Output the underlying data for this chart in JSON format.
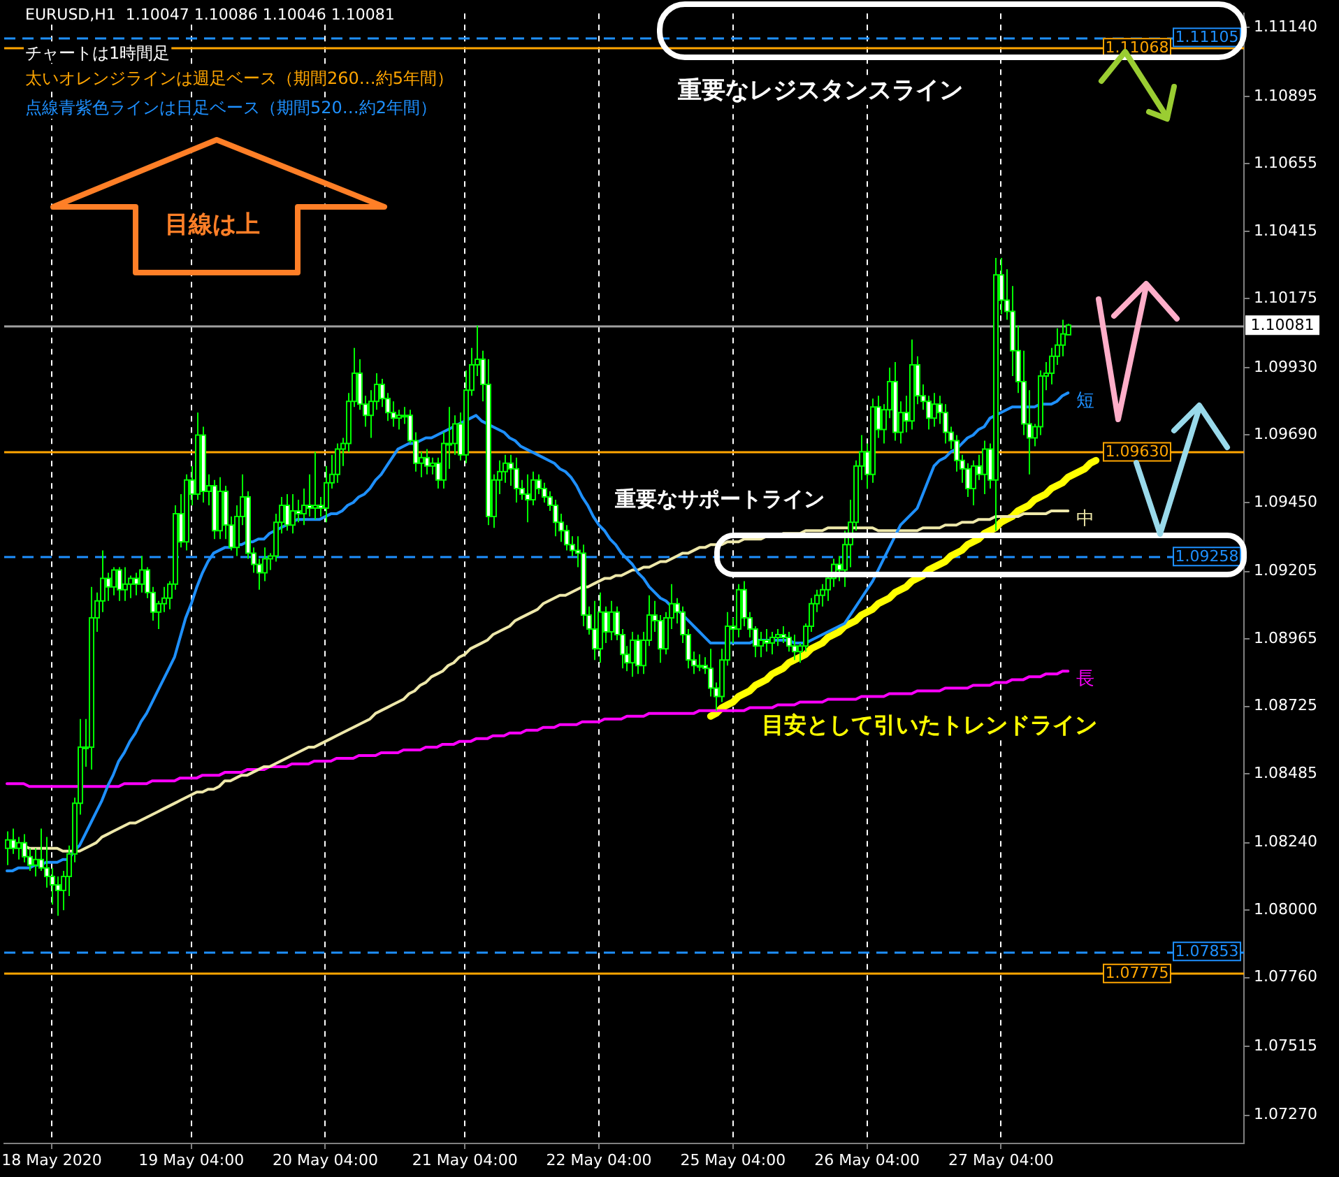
{
  "chart_data": {
    "type": "candlestick",
    "title": "EURUSD,H1  1.10047 1.10086 1.10046 1.10081",
    "annotations": [
      "チャートは1時間足",
      "太いオレンジラインは週足ベース（期間260…約5年間）",
      "点線青紫色ラインは日足ベース（期間520…約2年間）",
      "重要なレジスタンスライン",
      "目線は上",
      "重要なサポートライン",
      "目安として引いたトレンドライン"
    ],
    "categories": [
      null,
      null,
      null,
      null,
      null,
      null,
      null,
      null,
      "18 May 2020",
      null,
      null,
      null,
      null,
      null,
      null,
      null,
      null,
      null,
      null,
      null,
      null,
      null,
      null,
      null,
      null,
      null,
      null,
      null,
      null,
      null,
      null,
      null,
      null,
      "19 May 04:00",
      null,
      null,
      null,
      null,
      null,
      null,
      null,
      null,
      null,
      null,
      null,
      null,
      null,
      null,
      null,
      null,
      null,
      null,
      null,
      null,
      null,
      null,
      null,
      "20 May 04:00",
      null,
      null,
      null,
      null,
      null,
      null,
      null,
      null,
      null,
      null,
      null,
      null,
      null,
      null,
      null,
      null,
      null,
      null,
      null,
      null,
      null,
      null,
      null,
      null,
      "21 May 04:00",
      null,
      null,
      null,
      null,
      null,
      null,
      null,
      null,
      null,
      null,
      null,
      null,
      null,
      null,
      null,
      null,
      null,
      null,
      null,
      null,
      null,
      null,
      null,
      "22 May 04:00",
      null,
      null,
      null,
      null,
      null,
      null,
      null,
      null,
      null,
      null,
      null,
      null,
      null,
      null,
      null,
      null,
      null,
      null,
      null,
      null,
      null,
      null,
      null,
      "25 May 04:00",
      null,
      null,
      null,
      null,
      null,
      null,
      null,
      null,
      null,
      null,
      null,
      null,
      null,
      null,
      null,
      null,
      null,
      null,
      null,
      null,
      null,
      null,
      null,
      "26 May 04:00",
      null,
      null,
      null,
      null,
      null,
      null,
      null,
      null,
      null,
      null,
      null,
      null,
      null,
      null,
      null,
      null,
      null,
      null,
      null,
      null,
      null,
      null,
      null,
      "27 May 04:00",
      null,
      null,
      null,
      null,
      null,
      null,
      null,
      null,
      null,
      null,
      null,
      null,
      null,
      null,
      null,
      null,
      null,
      null,
      null,
      null,
      null,
      null,
      null,
      null,
      null,
      null,
      null,
      null,
      null,
      null,
      null,
      null,
      null,
      null,
      null,
      null,
      null,
      null,
      null,
      null,
      null,
      null,
      null
    ],
    "ohlc": [
      [
        1.0822,
        1.0828,
        1.0816,
        1.0825
      ],
      [
        1.0825,
        1.0829,
        1.082,
        1.0822
      ],
      [
        1.0822,
        1.0826,
        1.0818,
        1.0824
      ],
      [
        1.0824,
        1.0827,
        1.0817,
        1.0819
      ],
      [
        1.0819,
        1.0822,
        1.0814,
        1.0816
      ],
      [
        1.0816,
        1.0822,
        1.0812,
        1.0818
      ],
      [
        1.0818,
        1.0829,
        1.0814,
        1.0815
      ],
      [
        1.0815,
        1.0826,
        1.0808,
        1.0812
      ],
      [
        1.0812,
        1.0815,
        1.0802,
        1.0809
      ],
      [
        1.0809,
        1.0812,
        1.0798,
        1.0807
      ],
      [
        1.0807,
        1.0814,
        1.08,
        1.0812
      ],
      [
        1.0812,
        1.0823,
        1.0805,
        1.082
      ],
      [
        1.082,
        1.084,
        1.0817,
        1.0838
      ],
      [
        1.0838,
        1.0868,
        1.0834,
        1.0858
      ],
      [
        1.0858,
        1.0868,
        1.0851,
        1.0858
      ],
      [
        1.0858,
        1.0915,
        1.085,
        1.0904
      ],
      [
        1.0904,
        1.0913,
        1.0899,
        1.091
      ],
      [
        1.091,
        1.0928,
        1.0906,
        1.0918
      ],
      [
        1.0918,
        1.092,
        1.091,
        1.0915
      ],
      [
        1.0915,
        1.0922,
        1.0912,
        1.0921
      ],
      [
        1.0921,
        1.0922,
        1.091,
        1.0914
      ],
      [
        1.0914,
        1.0922,
        1.091,
        1.0916
      ],
      [
        1.0916,
        1.0919,
        1.0911,
        1.0918
      ],
      [
        1.0918,
        1.092,
        1.0912,
        1.0916
      ],
      [
        1.0916,
        1.0926,
        1.0913,
        1.0921
      ],
      [
        1.0921,
        1.0922,
        1.0911,
        1.0913
      ],
      [
        1.0913,
        1.0915,
        1.0903,
        1.0906
      ],
      [
        1.0906,
        1.091,
        1.09,
        1.0909
      ],
      [
        1.0909,
        1.0915,
        1.0906,
        1.0911
      ],
      [
        1.0911,
        1.0917,
        1.0907,
        1.0916
      ],
      [
        1.0916,
        1.0944,
        1.0914,
        1.0941
      ],
      [
        1.0941,
        1.0948,
        1.0929,
        1.0931
      ],
      [
        1.0931,
        1.0955,
        1.0928,
        1.0953
      ],
      [
        1.0953,
        1.0958,
        1.0944,
        1.0948
      ],
      [
        1.0948,
        1.0977,
        1.0946,
        1.0969
      ],
      [
        1.0969,
        1.0972,
        1.0945,
        1.0949
      ],
      [
        1.0949,
        1.0955,
        1.0944,
        1.0951
      ],
      [
        1.0951,
        1.0953,
        1.0932,
        1.0935
      ],
      [
        1.0935,
        1.0954,
        1.0932,
        1.0949
      ],
      [
        1.0949,
        1.0951,
        1.0932,
        1.0937
      ],
      [
        1.0937,
        1.094,
        1.0928,
        1.0929
      ],
      [
        1.0929,
        1.0944,
        1.0926,
        1.094
      ],
      [
        1.094,
        1.0955,
        1.0937,
        1.0947
      ],
      [
        1.0947,
        1.0949,
        1.0925,
        1.0927
      ],
      [
        1.0927,
        1.0929,
        1.092,
        1.0923
      ],
      [
        1.0923,
        1.0925,
        1.0914,
        1.092
      ],
      [
        1.092,
        1.0929,
        1.0917,
        1.0925
      ],
      [
        1.0925,
        1.0927,
        1.0921,
        1.0926
      ],
      [
        1.0926,
        1.0941,
        1.0924,
        1.0938
      ],
      [
        1.0938,
        1.0947,
        1.0934,
        1.0944
      ],
      [
        1.0944,
        1.0948,
        1.0935,
        1.0937
      ],
      [
        1.0937,
        1.0948,
        1.0934,
        1.0942
      ],
      [
        1.0942,
        1.0946,
        1.0938,
        1.0941
      ],
      [
        1.0941,
        1.095,
        1.0937,
        1.0944
      ],
      [
        1.0944,
        1.0955,
        1.094,
        1.0943
      ],
      [
        1.0943,
        1.0963,
        1.0939,
        1.0944
      ],
      [
        1.0944,
        1.0947,
        1.094,
        1.0943
      ],
      [
        1.0943,
        1.0958,
        1.0938,
        1.0952
      ],
      [
        1.0952,
        1.0962,
        1.095,
        1.0955
      ],
      [
        1.0955,
        1.0966,
        1.0952,
        1.0964
      ],
      [
        1.0964,
        1.0968,
        1.0958,
        1.0966
      ],
      [
        1.0966,
        1.0984,
        1.0963,
        1.0981
      ],
      [
        1.0981,
        1.1,
        1.0979,
        1.0991
      ],
      [
        1.0991,
        1.0996,
        1.0978,
        1.098
      ],
      [
        1.098,
        1.0983,
        1.0972,
        1.0976
      ],
      [
        1.0976,
        1.0985,
        1.0968,
        1.0981
      ],
      [
        1.0981,
        1.0991,
        1.0978,
        1.0987
      ],
      [
        1.0987,
        1.0989,
        1.0979,
        1.0982
      ],
      [
        1.0982,
        1.0984,
        1.0974,
        1.0977
      ],
      [
        1.0977,
        1.0981,
        1.0972,
        1.0975
      ],
      [
        1.0975,
        1.0978,
        1.0971,
        1.0976
      ],
      [
        1.0976,
        1.0979,
        1.0973,
        1.0976
      ],
      [
        1.0976,
        1.0978,
        1.0966,
        1.0967
      ],
      [
        1.0967,
        1.097,
        1.0956,
        1.0959
      ],
      [
        1.0959,
        1.0963,
        1.0954,
        1.0961
      ],
      [
        1.0961,
        1.0964,
        1.0955,
        1.0958
      ],
      [
        1.0958,
        1.0961,
        1.0955,
        1.0959
      ],
      [
        1.0959,
        1.0961,
        1.095,
        1.0953
      ],
      [
        1.0953,
        1.097,
        1.095,
        1.0966
      ],
      [
        1.0966,
        1.0979,
        1.0957,
        1.0966
      ],
      [
        1.0966,
        1.0976,
        1.0962,
        1.0973
      ],
      [
        1.0973,
        1.0977,
        1.096,
        1.0962
      ],
      [
        1.0962,
        1.0992,
        1.0959,
        1.0985
      ],
      [
        1.0985,
        1.1,
        1.0983,
        1.0994
      ],
      [
        1.0994,
        1.1008,
        1.099,
        1.0996
      ],
      [
        1.0996,
        1.0999,
        1.0981,
        1.0987
      ],
      [
        1.0987,
        1.0996,
        1.0937,
        1.094
      ],
      [
        1.094,
        1.0955,
        1.0936,
        1.0953
      ],
      [
        1.0953,
        1.096,
        1.0948,
        1.0956
      ],
      [
        1.0956,
        1.0962,
        1.0952,
        1.0959
      ],
      [
        1.0959,
        1.0962,
        1.0951,
        1.0957
      ],
      [
        1.0957,
        1.0961,
        1.0945,
        1.095
      ],
      [
        1.095,
        1.0953,
        1.0946,
        1.0948
      ],
      [
        1.0948,
        1.0955,
        1.0938,
        1.0946
      ],
      [
        1.0946,
        1.0956,
        1.0944,
        1.0953
      ],
      [
        1.0953,
        1.0955,
        1.0948,
        1.095
      ],
      [
        1.095,
        1.0952,
        1.0945,
        1.0947
      ],
      [
        1.0947,
        1.0949,
        1.0942,
        1.0944
      ],
      [
        1.0944,
        1.0946,
        1.0933,
        1.0938
      ],
      [
        1.0938,
        1.0941,
        1.0931,
        1.0935
      ],
      [
        1.0935,
        1.0937,
        1.0928,
        1.093
      ],
      [
        1.093,
        1.0933,
        1.0926,
        1.0928
      ],
      [
        1.0928,
        1.0933,
        1.0922,
        1.0927
      ],
      [
        1.0927,
        1.093,
        1.0901,
        1.0905
      ],
      [
        1.0905,
        1.0908,
        1.0898,
        1.09
      ],
      [
        1.09,
        1.091,
        1.0889,
        1.0893
      ],
      [
        1.0893,
        1.0913,
        1.0888,
        1.0906
      ],
      [
        1.0906,
        1.0908,
        1.0895,
        1.0899
      ],
      [
        1.0899,
        1.091,
        1.0896,
        1.0906
      ],
      [
        1.0906,
        1.0908,
        1.0896,
        1.0898
      ],
      [
        1.0898,
        1.09,
        1.0886,
        1.0891
      ],
      [
        1.0891,
        1.0894,
        1.0885,
        1.0888
      ],
      [
        1.0888,
        1.0899,
        1.0883,
        1.0896
      ],
      [
        1.0896,
        1.0898,
        1.0884,
        1.0887
      ],
      [
        1.0887,
        1.0899,
        1.0884,
        1.0896
      ],
      [
        1.0896,
        1.0912,
        1.0894,
        1.0905
      ],
      [
        1.0905,
        1.091,
        1.0899,
        1.0903
      ],
      [
        1.0903,
        1.0905,
        1.0888,
        1.0893
      ],
      [
        1.0893,
        1.0906,
        1.0891,
        1.0904
      ],
      [
        1.0904,
        1.0916,
        1.09,
        1.0909
      ],
      [
        1.0909,
        1.0911,
        1.0902,
        1.0906
      ],
      [
        1.0906,
        1.0908,
        1.0895,
        1.0898
      ],
      [
        1.0898,
        1.09,
        1.0886,
        1.0889
      ],
      [
        1.0889,
        1.0892,
        1.0884,
        1.0887
      ],
      [
        1.0887,
        1.0891,
        1.0885,
        1.0887
      ],
      [
        1.0887,
        1.089,
        1.0884,
        1.0886
      ],
      [
        1.0886,
        1.0893,
        1.0876,
        1.0879
      ],
      [
        1.0879,
        1.0881,
        1.0871,
        1.0876
      ],
      [
        1.0876,
        1.0893,
        1.0874,
        1.0889
      ],
      [
        1.0889,
        1.0906,
        1.0887,
        1.0901
      ],
      [
        1.0901,
        1.0904,
        1.0895,
        1.09
      ],
      [
        1.09,
        1.0916,
        1.0897,
        1.0914
      ],
      [
        1.0914,
        1.0917,
        1.0901,
        1.0904
      ],
      [
        1.0904,
        1.0906,
        1.0897,
        1.09
      ],
      [
        1.09,
        1.0901,
        1.089,
        1.0894
      ],
      [
        1.0894,
        1.0899,
        1.089,
        1.0896
      ],
      [
        1.0896,
        1.09,
        1.0892,
        1.0895
      ],
      [
        1.0895,
        1.0899,
        1.0891,
        1.0897
      ],
      [
        1.0897,
        1.09,
        1.0894,
        1.0898
      ],
      [
        1.0898,
        1.0901,
        1.0895,
        1.0897
      ],
      [
        1.0897,
        1.0899,
        1.0892,
        1.0894
      ],
      [
        1.0894,
        1.0898,
        1.0889,
        1.0892
      ],
      [
        1.0892,
        1.0895,
        1.0888,
        1.0894
      ],
      [
        1.0894,
        1.0902,
        1.0892,
        1.0901
      ],
      [
        1.0901,
        1.0911,
        1.0899,
        1.0909
      ],
      [
        1.0909,
        1.0914,
        1.0906,
        1.0912
      ],
      [
        1.0912,
        1.0916,
        1.0908,
        1.0914
      ],
      [
        1.0914,
        1.092,
        1.091,
        1.0918
      ],
      [
        1.0918,
        1.0925,
        1.0915,
        1.0923
      ],
      [
        1.0923,
        1.0926,
        1.0917,
        1.0921
      ],
      [
        1.0921,
        1.0935,
        1.0915,
        1.093
      ],
      [
        1.093,
        1.0946,
        1.0922,
        1.0938
      ],
      [
        1.0938,
        1.096,
        1.0935,
        1.0958
      ],
      [
        1.0958,
        1.0969,
        1.0953,
        1.0963
      ],
      [
        1.0963,
        1.0966,
        1.095,
        1.0955
      ],
      [
        1.0955,
        1.0982,
        1.0952,
        1.0979
      ],
      [
        1.0979,
        1.0983,
        1.0968,
        1.0971
      ],
      [
        1.0971,
        1.098,
        1.0966,
        1.0978
      ],
      [
        1.0978,
        1.0993,
        1.0975,
        1.0988
      ],
      [
        1.0988,
        1.0995,
        1.0967,
        1.097
      ],
      [
        1.097,
        1.0981,
        1.0966,
        1.0977
      ],
      [
        1.0977,
        1.0983,
        1.097,
        1.0974
      ],
      [
        1.0974,
        1.1003,
        1.0971,
        1.0994
      ],
      [
        1.0994,
        1.0997,
        1.098,
        1.0983
      ],
      [
        1.0983,
        1.0987,
        1.0978,
        1.0981
      ],
      [
        1.0981,
        1.0983,
        1.0971,
        1.0975
      ],
      [
        1.0975,
        1.0984,
        1.0972,
        1.098
      ],
      [
        1.098,
        1.0983,
        1.0973,
        1.0977
      ],
      [
        1.0977,
        1.098,
        1.0966,
        1.097
      ],
      [
        1.097,
        1.0972,
        1.0964,
        1.0967
      ],
      [
        1.0967,
        1.0969,
        1.0956,
        1.096
      ],
      [
        1.096,
        1.0962,
        1.0952,
        1.0957
      ],
      [
        1.0957,
        1.0959,
        1.0947,
        1.095
      ],
      [
        1.095,
        1.096,
        1.0944,
        1.0958
      ],
      [
        1.0958,
        1.0962,
        1.0953,
        1.0955
      ],
      [
        1.0955,
        1.0967,
        1.0948,
        1.0964
      ],
      [
        1.0964,
        1.0966,
        1.095,
        1.0953
      ],
      [
        1.0953,
        1.1032,
        1.0935,
        1.1026
      ],
      [
        1.1026,
        1.1032,
        1.1012,
        1.1017
      ],
      [
        1.1017,
        1.1028,
        1.101,
        1.1013
      ],
      [
        1.1013,
        1.1022,
        1.099,
        1.0999
      ],
      [
        1.0999,
        1.1008,
        1.0984,
        1.0988
      ],
      [
        1.0988,
        1.0999,
        1.0969,
        1.0973
      ],
      [
        1.0973,
        1.0985,
        1.0955,
        1.0968
      ],
      [
        1.0968,
        1.0973,
        1.0965,
        1.0972
      ],
      [
        1.0972,
        1.0992,
        1.0969,
        1.099
      ],
      [
        1.099,
        1.0995,
        1.0985,
        1.0991
      ],
      [
        1.0991,
        1.1,
        1.0987,
        1.0997
      ],
      [
        1.0997,
        1.1007,
        1.0994,
        1.1001
      ],
      [
        1.1001,
        1.101,
        1.0997,
        1.1005
      ],
      [
        1.10047,
        1.10086,
        1.10046,
        1.10081
      ],
      null,
      null,
      null,
      null,
      null,
      null,
      null,
      null,
      null,
      null,
      null,
      null,
      null,
      null,
      null,
      null,
      null,
      null,
      null,
      null,
      null,
      null,
      null,
      null,
      null,
      null,
      null,
      null,
      null,
      null,
      null
    ],
    "series": [
      {
        "type": "line",
        "name": "短",
        "color": "#1e90ff",
        "values": [
          1.0814,
          1.0814,
          1.0815,
          1.0815,
          1.0815,
          1.0816,
          1.0816,
          1.0817,
          1.0817,
          1.0817,
          1.0818,
          1.0818,
          1.0821,
          1.0823,
          1.0827,
          1.0831,
          1.0835,
          1.0839,
          1.0844,
          1.0848,
          1.0853,
          1.0856,
          1.086,
          1.0863,
          1.0867,
          1.087,
          1.0874,
          1.0878,
          1.0882,
          1.0886,
          1.089,
          1.0897,
          1.0904,
          1.0909,
          1.0915,
          1.092,
          1.0924,
          1.0927,
          1.0928,
          1.0929,
          1.0929,
          1.093,
          1.093,
          1.0931,
          1.0931,
          1.0932,
          1.0932,
          1.0934,
          1.0935,
          1.0936,
          1.0937,
          1.0938,
          1.0939,
          1.0939,
          1.0939,
          1.0939,
          1.0939,
          1.094,
          1.0941,
          1.0941,
          1.0942,
          1.0944,
          1.0945,
          1.0947,
          1.0948,
          1.095,
          1.0953,
          1.0955,
          1.0958,
          1.0961,
          1.0964,
          1.0965,
          1.0966,
          1.0966,
          1.0967,
          1.0968,
          1.0968,
          1.0969,
          1.097,
          1.0971,
          1.0972,
          1.0973,
          1.0974,
          1.0975,
          1.0976,
          1.0974,
          1.0973,
          1.0972,
          1.0971,
          1.097,
          1.0968,
          1.0967,
          1.0965,
          1.0964,
          1.0963,
          1.0962,
          1.0961,
          1.096,
          1.0959,
          1.0957,
          1.0956,
          1.0954,
          1.0951,
          1.0947,
          1.0944,
          1.094,
          1.0937,
          1.0935,
          1.0932,
          1.093,
          1.0927,
          1.0925,
          1.0923,
          1.092,
          1.0918,
          1.0915,
          1.0913,
          1.0911,
          1.091,
          1.0908,
          1.0907,
          1.0905,
          1.0903,
          1.0901,
          1.0899,
          1.0897,
          1.0895,
          1.0895,
          1.0895,
          1.0895,
          1.0895,
          1.0895,
          1.0895,
          1.0895,
          1.0896,
          1.0896,
          1.0896,
          1.0896,
          1.0896,
          1.0896,
          1.0896,
          1.0895,
          1.0895,
          1.0895,
          1.0896,
          1.0897,
          1.0898,
          1.0899,
          1.09,
          1.0901,
          1.0902,
          1.0905,
          1.0908,
          1.0911,
          1.0914,
          1.0917,
          1.0921,
          1.0925,
          1.0929,
          1.0933,
          1.0937,
          1.0939,
          1.0941,
          1.0943,
          1.0948,
          1.0953,
          1.0958,
          1.096,
          1.0961,
          1.0963,
          1.0964,
          1.0966,
          1.0968,
          1.0969,
          1.0971,
          1.0972,
          1.0975,
          1.0976,
          1.0977,
          1.0978,
          1.0979,
          1.0979,
          1.0979,
          1.0979,
          1.0979,
          1.098,
          1.098,
          1.098,
          1.0981,
          1.0983,
          1.0984,
          null,
          null,
          null,
          null,
          null,
          null,
          null,
          null,
          null,
          null,
          null,
          null,
          null,
          null,
          null,
          null,
          null,
          null,
          null,
          null,
          null,
          null,
          null,
          null,
          null,
          null,
          null,
          null,
          null,
          null,
          null
        ]
      },
      {
        "type": "line",
        "name": "中",
        "color": "#eee8aa",
        "values": [
          null,
          null,
          1.0823,
          1.0823,
          1.0822,
          1.0822,
          1.0822,
          1.0822,
          1.0822,
          1.0822,
          1.0821,
          1.0821,
          1.0821,
          1.0821,
          1.0822,
          1.0823,
          1.0824,
          1.0826,
          1.0827,
          1.0828,
          1.0829,
          1.083,
          1.0831,
          1.0831,
          1.0832,
          1.0833,
          1.0834,
          1.0835,
          1.0836,
          1.0837,
          1.0838,
          1.0839,
          1.084,
          1.0841,
          1.0842,
          1.0842,
          1.0843,
          1.0843,
          1.0844,
          1.0846,
          1.0846,
          1.0847,
          1.0848,
          1.0848,
          1.0849,
          1.085,
          1.0851,
          1.0851,
          1.0852,
          1.0853,
          1.0854,
          1.0855,
          1.0856,
          1.0857,
          1.0858,
          1.0858,
          1.0859,
          1.086,
          1.0861,
          1.0862,
          1.0863,
          1.0864,
          1.0865,
          1.0866,
          1.0867,
          1.0868,
          1.087,
          1.0871,
          1.0872,
          1.0873,
          1.0874,
          1.0875,
          1.0877,
          1.0878,
          1.088,
          1.0881,
          1.0883,
          1.0884,
          1.0885,
          1.0887,
          1.0888,
          1.089,
          1.0891,
          1.0893,
          1.0894,
          1.0895,
          1.0896,
          1.0898,
          1.0899,
          1.09,
          1.0901,
          1.0903,
          1.0904,
          1.0905,
          1.0906,
          1.0907,
          1.0909,
          1.091,
          1.0911,
          1.0912,
          1.0912,
          1.0913,
          1.0914,
          1.0915,
          1.0915,
          1.0916,
          1.0917,
          1.0918,
          1.0918,
          1.0919,
          1.0919,
          1.092,
          1.0921,
          1.0921,
          1.0922,
          1.0922,
          1.0923,
          1.0924,
          1.0924,
          1.0925,
          1.0926,
          1.0927,
          1.0927,
          1.0928,
          1.0929,
          1.0929,
          1.093,
          1.093,
          1.093,
          1.0931,
          1.0931,
          1.0931,
          1.0932,
          1.0932,
          1.0932,
          1.0932,
          1.0933,
          1.0933,
          1.0933,
          1.0934,
          1.0934,
          1.0934,
          1.0934,
          1.0935,
          1.0935,
          1.0935,
          1.0935,
          1.0936,
          1.0936,
          1.0936,
          1.0936,
          1.0936,
          1.0936,
          1.0936,
          1.0936,
          1.0936,
          1.0935,
          1.0935,
          1.0935,
          1.0935,
          1.0935,
          1.0935,
          1.0935,
          1.0935,
          1.0936,
          1.0936,
          1.0936,
          1.0936,
          1.0937,
          1.0937,
          1.0937,
          1.0938,
          1.0938,
          1.0938,
          1.0939,
          1.0939,
          1.0939,
          1.094,
          1.094,
          1.094,
          1.094,
          1.094,
          1.0941,
          1.0941,
          1.0941,
          1.0941,
          1.0941,
          1.0942,
          1.0942,
          1.0942,
          1.0942,
          null,
          null,
          null,
          null,
          null,
          null,
          null,
          null,
          null,
          null,
          null,
          null,
          null,
          null,
          null,
          null,
          null,
          null,
          null,
          null,
          null,
          null,
          null,
          null,
          null,
          null,
          null,
          null,
          null,
          null,
          null
        ]
      },
      {
        "type": "line",
        "name": "長",
        "color": "#ff00ff",
        "values": [
          1.0845,
          1.0845,
          1.0845,
          1.0845,
          1.0844,
          1.0844,
          1.0844,
          1.0844,
          1.0844,
          1.0844,
          1.0844,
          1.0844,
          1.0844,
          1.0844,
          1.0844,
          1.0844,
          1.0844,
          1.0844,
          1.0844,
          1.0844,
          1.0844,
          1.0845,
          1.0845,
          1.0845,
          1.0845,
          1.0845,
          1.0846,
          1.0846,
          1.0846,
          1.0846,
          1.0846,
          1.0847,
          1.0847,
          1.0847,
          1.0847,
          1.0848,
          1.0848,
          1.0848,
          1.0848,
          1.0849,
          1.0849,
          1.0849,
          1.0849,
          1.085,
          1.085,
          1.085,
          1.085,
          1.0851,
          1.0851,
          1.0851,
          1.0851,
          1.0852,
          1.0852,
          1.0852,
          1.0852,
          1.0853,
          1.0853,
          1.0853,
          1.0853,
          1.0854,
          1.0854,
          1.0854,
          1.0854,
          1.0855,
          1.0855,
          1.0855,
          1.0855,
          1.0856,
          1.0856,
          1.0856,
          1.0856,
          1.0857,
          1.0857,
          1.0857,
          1.0857,
          1.0858,
          1.0858,
          1.0858,
          1.0859,
          1.0859,
          1.0859,
          1.086,
          1.086,
          1.086,
          1.0861,
          1.0861,
          1.0861,
          1.0862,
          1.0862,
          1.0862,
          1.0863,
          1.0863,
          1.0863,
          1.0864,
          1.0864,
          1.0864,
          1.0865,
          1.0865,
          1.0865,
          1.0866,
          1.0866,
          1.0866,
          1.0866,
          1.0867,
          1.0867,
          1.0867,
          1.0867,
          1.0868,
          1.0868,
          1.0868,
          1.0868,
          1.0869,
          1.0869,
          1.0869,
          1.0869,
          1.087,
          1.087,
          1.087,
          1.087,
          1.087,
          1.087,
          1.087,
          1.087,
          1.087,
          1.0871,
          1.0871,
          1.0871,
          1.0871,
          1.0871,
          1.0871,
          1.0871,
          1.0871,
          1.0871,
          1.0872,
          1.0872,
          1.0872,
          1.0872,
          1.0872,
          1.0873,
          1.0873,
          1.0873,
          1.0873,
          1.0874,
          1.0874,
          1.0874,
          1.0874,
          1.0874,
          1.0875,
          1.0875,
          1.0875,
          1.0875,
          1.0875,
          1.0875,
          1.0876,
          1.0876,
          1.0876,
          1.0876,
          1.0876,
          1.0877,
          1.0877,
          1.0877,
          1.0877,
          1.0877,
          1.0878,
          1.0878,
          1.0878,
          1.0878,
          1.0878,
          1.0879,
          1.0879,
          1.0879,
          1.0879,
          1.0879,
          1.088,
          1.088,
          1.088,
          1.088,
          1.0881,
          1.0881,
          1.0881,
          1.0882,
          1.0882,
          1.0882,
          1.0883,
          1.0883,
          1.0883,
          1.0884,
          1.0884,
          1.0884,
          1.0885,
          1.0885,
          null,
          null,
          null,
          null,
          null,
          null,
          null,
          null,
          null,
          null,
          null,
          null,
          null,
          null,
          null,
          null,
          null,
          null,
          null,
          null,
          null,
          null,
          null,
          null,
          null,
          null,
          null,
          null,
          null,
          null,
          null
        ]
      },
      {
        "type": "line",
        "color": "#ffff00",
        "values": [
          null,
          null,
          null,
          null,
          null,
          null,
          null,
          null,
          null,
          null,
          null,
          null,
          null,
          null,
          null,
          null,
          null,
          null,
          null,
          null,
          null,
          null,
          null,
          null,
          null,
          null,
          null,
          null,
          null,
          null,
          null,
          null,
          null,
          null,
          null,
          null,
          null,
          null,
          null,
          null,
          null,
          null,
          null,
          null,
          null,
          null,
          null,
          null,
          null,
          null,
          null,
          null,
          null,
          null,
          null,
          null,
          null,
          null,
          null,
          null,
          null,
          null,
          null,
          null,
          null,
          null,
          null,
          null,
          null,
          null,
          null,
          null,
          null,
          null,
          null,
          null,
          null,
          null,
          null,
          null,
          null,
          null,
          null,
          null,
          null,
          null,
          null,
          null,
          null,
          null,
          null,
          null,
          null,
          null,
          null,
          null,
          null,
          null,
          null,
          null,
          null,
          null,
          null,
          null,
          null,
          null,
          null,
          null,
          null,
          null,
          null,
          null,
          null,
          null,
          null,
          null,
          null,
          null,
          null,
          null,
          null,
          null,
          null,
          null,
          null,
          null,
          1.0869,
          1.087,
          1.0872,
          1.0873,
          1.0874,
          1.0876,
          1.0877,
          1.0878,
          1.088,
          1.0881,
          1.0882,
          1.0884,
          1.0885,
          1.0886,
          1.0888,
          1.0889,
          1.089,
          1.0891,
          1.0893,
          1.0894,
          1.0895,
          1.0897,
          1.0898,
          1.0899,
          1.0901,
          1.0902,
          1.0903,
          1.0905,
          1.0906,
          1.0907,
          1.0909,
          1.091,
          1.0911,
          1.0913,
          1.0914,
          1.0915,
          1.0917,
          1.0918,
          1.0919,
          1.0921,
          1.0922,
          1.0923,
          1.0924,
          1.0926,
          1.0927,
          1.0928,
          1.093,
          1.0931,
          1.0932,
          1.0934,
          1.0935,
          1.0936,
          1.0938,
          1.0939,
          1.094,
          1.0942,
          1.0943,
          1.0944,
          1.0946,
          1.0947,
          1.0948,
          1.095,
          1.0951,
          1.0952,
          1.0954,
          1.0955,
          1.0956,
          1.0957,
          1.0959,
          1.096,
          null,
          null,
          null,
          null,
          null,
          null,
          null,
          null,
          null,
          null,
          null,
          null,
          null,
          null,
          null,
          null,
          null,
          null,
          null,
          null,
          null,
          null,
          null,
          null,
          null,
          null
        ]
      }
    ],
    "ylim": [
      1.0717,
      1.1119
    ],
    "yticks": [
      {
        "value": 1.1114,
        "label": "1.11140"
      },
      1.10895,
      1.10655,
      1.10415,
      1.10175,
      {
        "value": 1.0993,
        "label": "1.09930"
      },
      {
        "value": 1.0969,
        "label": "1.09690"
      },
      {
        "value": 1.0945,
        "label": "1.09450"
      },
      1.09205,
      1.08965,
      1.08725,
      1.08485,
      {
        "value": 1.0824,
        "label": "1.08240"
      },
      {
        "value": 1.08,
        "label": "1.08000"
      },
      {
        "value": 1.0776,
        "label": "1.07760"
      },
      1.07515,
      {
        "value": 1.0727,
        "label": "1.07270"
      }
    ],
    "ref_lines": [
      {
        "axis": "y",
        "value": 1.11105,
        "label": "1.11105",
        "color": "#1e90ff",
        "line_style": "dashed"
      },
      {
        "axis": "y",
        "value": 1.11068,
        "label": "1.11068",
        "color": "#ffa500"
      },
      {
        "axis": "y",
        "value": 1.10081,
        "label": "1.10081",
        "color": "#a0a0a0"
      },
      {
        "axis": "y",
        "value": 1.0963,
        "label": "1.09630",
        "color": "#ffa500"
      },
      {
        "axis": "y",
        "value": 1.09258,
        "label": "1.09258",
        "color": "#1e90ff",
        "line_style": "dashed"
      },
      {
        "axis": "y",
        "value": 1.07853,
        "label": "1.07853",
        "color": "#1e90ff",
        "line_style": "dashed"
      },
      {
        "axis": "y",
        "value": 1.07775,
        "label": "1.07775",
        "color": "#ffa500"
      }
    ],
    "legend": false,
    "grid": "x"
  }
}
